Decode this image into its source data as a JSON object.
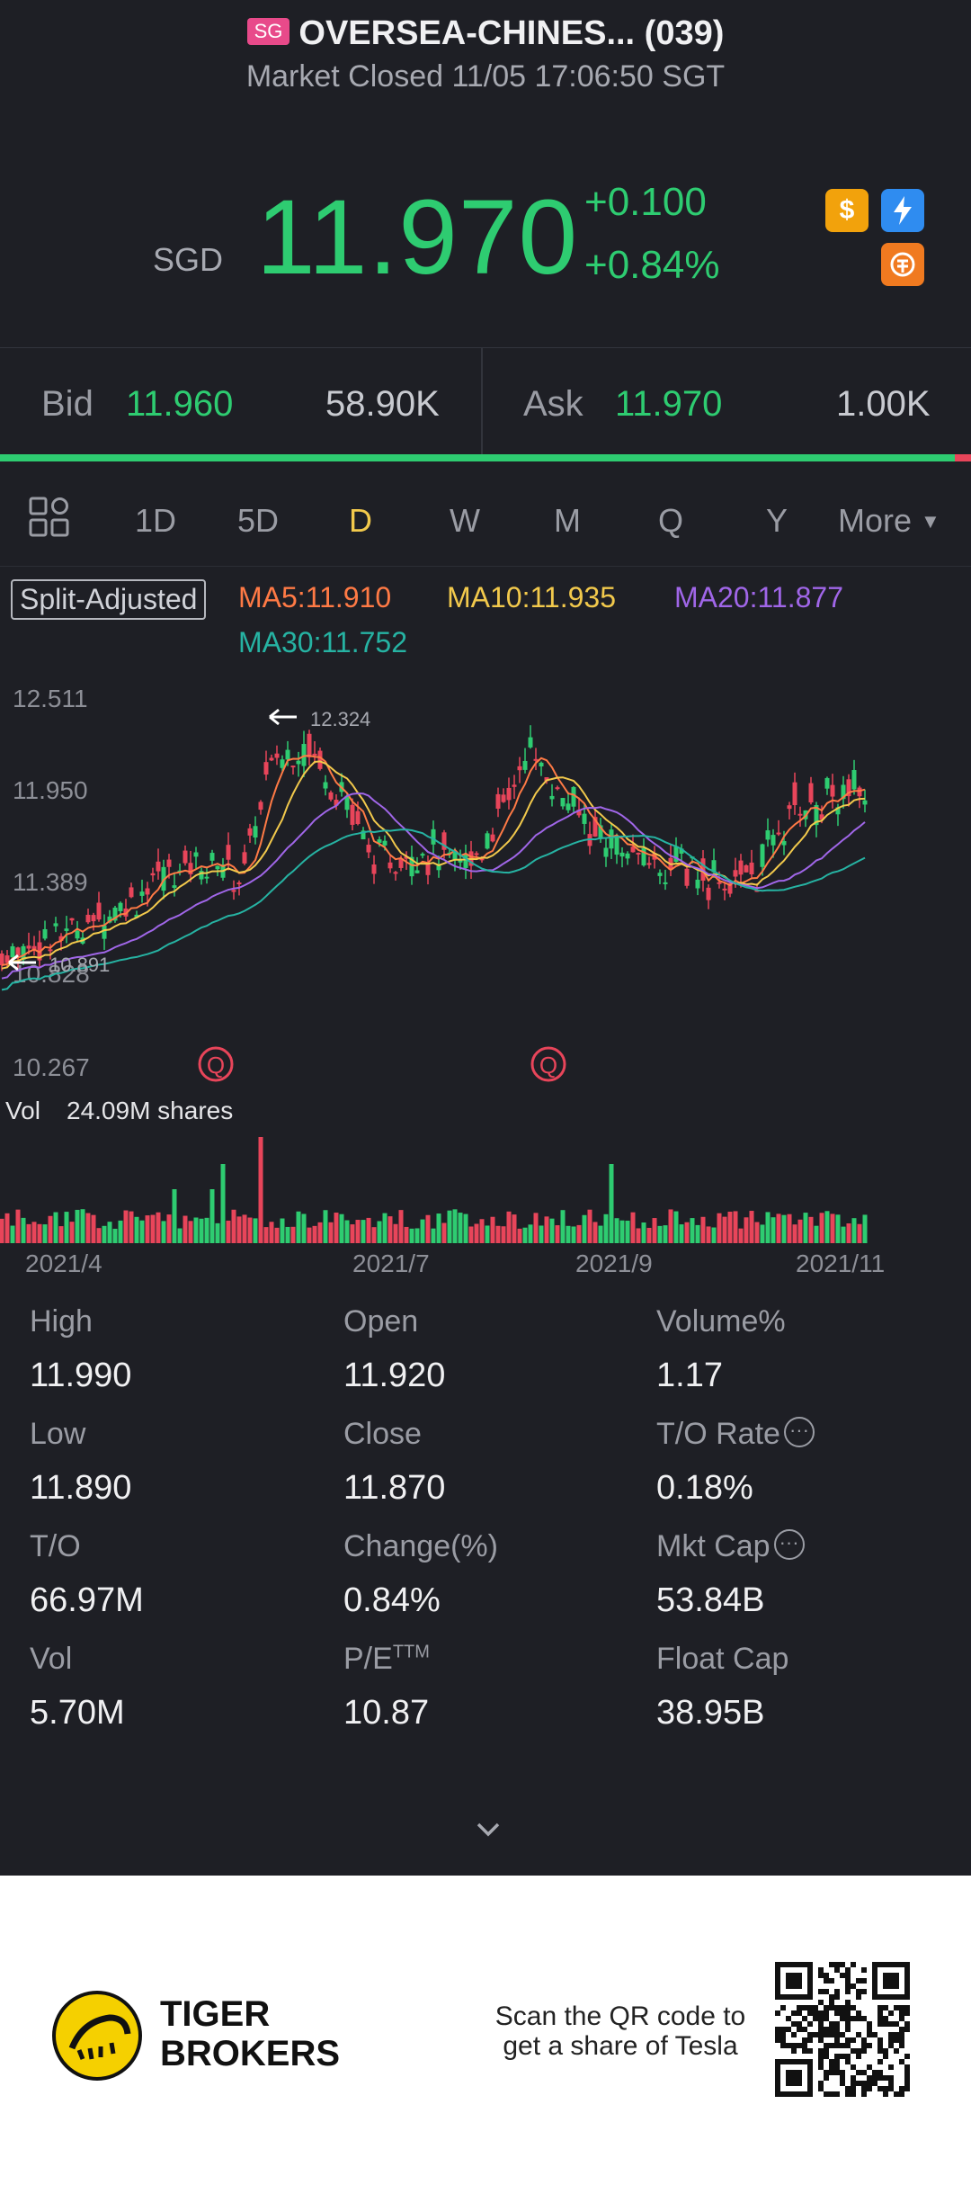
{
  "header": {
    "market_badge": "SG",
    "title": "OVERSEA-CHINES... (039)",
    "market_status": "Market Closed 11/05 17:06:50 SGT",
    "currency": "SGD",
    "price": "11.970",
    "change_abs": "+0.100",
    "change_pct": "+0.84%",
    "badges": [
      "dollar-icon",
      "flash-icon",
      "dividend-icon"
    ]
  },
  "bid_ask": {
    "bid_label": "Bid",
    "bid_price": "11.960",
    "bid_size": "58.90K",
    "ask_label": "Ask",
    "ask_price": "11.970",
    "ask_size": "1.00K"
  },
  "periods": {
    "items": [
      "1D",
      "5D",
      "D",
      "W",
      "M",
      "Q",
      "Y"
    ],
    "selected": "D",
    "more": "More"
  },
  "indicators": {
    "split": "Split-Adjusted",
    "ma5": "MA5:11.910",
    "ma10": "MA10:11.935",
    "ma20": "MA20:11.877",
    "ma30": "MA30:11.752"
  },
  "chart_data": {
    "type": "candlestick",
    "y_ticks": [
      "12.511",
      "11.950",
      "11.389",
      "10.828",
      "10.267"
    ],
    "high_marker": "12.324",
    "low_marker": "10.891",
    "event_markers": [
      "Q",
      "Q"
    ],
    "x_ticks": [
      "2021/4",
      "2021/7",
      "2021/9",
      "2021/11"
    ],
    "volume_label": "Vol",
    "volume_value": "24.09M shares",
    "colors": {
      "up": "#2ecc71",
      "down": "#e8455a",
      "ma5": "#ff7a45",
      "ma10": "#f2c94c",
      "ma20": "#a066e8",
      "ma30": "#26b3a3"
    }
  },
  "stats": {
    "high_label": "High",
    "high": "11.990",
    "open_label": "Open",
    "open": "11.920",
    "volpct_label": "Volume%",
    "volpct": "1.17",
    "low_label": "Low",
    "low": "11.890",
    "close_label": "Close",
    "close": "11.870",
    "torate_label": "T/O Rate",
    "torate": "0.18%",
    "to_label": "T/O",
    "to": "66.97M",
    "chg_label": "Change(%)",
    "chg": "0.84%",
    "mktcap_label": "Mkt Cap",
    "mktcap": "53.84B",
    "vol_label": "Vol",
    "vol": "5.70M",
    "pe_label": "P/E",
    "pe_sup": "TTM",
    "pe": "10.87",
    "floatcap_label": "Float Cap",
    "floatcap": "38.95B"
  },
  "footer": {
    "brand_line1": "TIGER",
    "brand_line2": "BROKERS",
    "scan_line1": "Scan the QR code to",
    "scan_line2": "get a share of Tesla"
  }
}
